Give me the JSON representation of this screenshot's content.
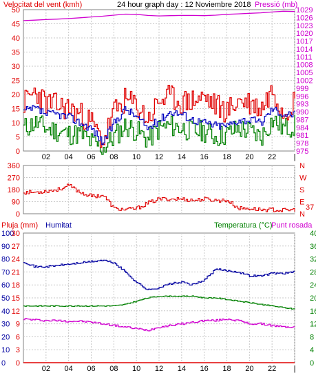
{
  "colors": {
    "wind": "#e00000",
    "gust_avg": "#0000c0",
    "wind_low": "#008000",
    "pressure": "#d000d0",
    "direction": "#e00000",
    "humidity": "#0000a0",
    "temperature": "#008000",
    "dewpoint": "#d000d0",
    "rain": "#e00000"
  },
  "chart_data": [
    {
      "type": "line",
      "title": "24 hour graph day : 12 Noviembre 2018",
      "left_axis_label": "Velocitat del vent (kmh)",
      "right_axis_label": "Pressió (mb)",
      "x_ticks": [
        "02",
        "04",
        "06",
        "08",
        "10",
        "12",
        "14",
        "16",
        "18",
        "20",
        "22",
        "|"
      ],
      "left_ticks": [
        0,
        5,
        10,
        15,
        20,
        25,
        30,
        35,
        40,
        45,
        50
      ],
      "right_ticks": [
        975,
        978,
        981,
        984,
        987,
        990,
        993,
        996,
        999,
        1002,
        1005,
        1008,
        1011,
        1014,
        1017,
        1020,
        1023,
        1026,
        1029
      ],
      "ylim_left": [
        0,
        50
      ],
      "ylim_right": [
        975,
        1029
      ],
      "x_hours": [
        0,
        1,
        2,
        3,
        4,
        5,
        6,
        7,
        8,
        9,
        10,
        11,
        12,
        13,
        14,
        15,
        16,
        17,
        18,
        19,
        20,
        21,
        22,
        23,
        24
      ],
      "series": [
        {
          "role": "wind_gust",
          "values": [
            17,
            21,
            17,
            16,
            15,
            13,
            10,
            3,
            14,
            18,
            16,
            11,
            18,
            19,
            17,
            18,
            19,
            16,
            14,
            18,
            17,
            15,
            22,
            14,
            18
          ]
        },
        {
          "role": "wind_avg",
          "values": [
            14,
            15,
            13,
            13,
            12,
            10,
            8,
            3,
            10,
            15,
            12,
            8,
            11,
            14,
            13,
            11,
            10,
            9,
            9,
            11,
            11,
            10,
            15,
            13,
            13
          ]
        },
        {
          "role": "wind_low",
          "values": [
            8,
            10,
            8,
            7,
            6,
            6,
            3,
            1,
            5,
            9,
            7,
            4,
            8,
            9,
            8,
            7,
            7,
            5,
            6,
            8,
            7,
            5,
            11,
            8,
            9
          ]
        },
        {
          "role": "pressure",
          "values": [
            1024.8,
            1025,
            1025.2,
            1025.4,
            1025.6,
            1025.9,
            1026.2,
            1026.5,
            1026.9,
            1027.3,
            1027.2,
            1026.8,
            1026.6,
            1026.7,
            1026.8,
            1026.8,
            1026.7,
            1026.9,
            1027.2,
            1027.4,
            1027.6,
            1027.8,
            1028.1,
            1028.4,
            1028.3
          ]
        }
      ]
    },
    {
      "type": "line",
      "left_ticks": [
        0,
        90,
        180,
        270,
        360
      ],
      "right_letters": [
        "N",
        "W",
        "S",
        "E",
        "N"
      ],
      "current_value": "37",
      "ylim": [
        0,
        360
      ],
      "x_hours": [
        0,
        1,
        2,
        3,
        4,
        5,
        6,
        7,
        8,
        9,
        10,
        11,
        12,
        13,
        14,
        15,
        16,
        17,
        18,
        19,
        20,
        21,
        22,
        23,
        24
      ],
      "series": [
        {
          "role": "direction",
          "values": [
            160,
            160,
            170,
            180,
            210,
            160,
            130,
            140,
            40,
            30,
            40,
            80,
            110,
            110,
            110,
            100,
            110,
            100,
            100,
            40,
            40,
            30,
            30,
            25,
            30
          ]
        }
      ]
    },
    {
      "type": "line",
      "left_label_rain": "Pluja (mm)",
      "left_label_humidity": "Humitat",
      "right_label_temp": "Temperatura (°C)",
      "right_label_dew": "Punt rosada",
      "rain_ticks": [
        0,
        3,
        6,
        9,
        12,
        15,
        18,
        21,
        24,
        27,
        30
      ],
      "humidity_ticks": [
        0,
        10,
        20,
        30,
        40,
        50,
        60,
        70,
        80,
        90,
        100
      ],
      "temp_ticks": [
        0,
        4,
        8,
        12,
        16,
        20,
        24,
        28,
        32,
        36,
        40
      ],
      "x_ticks": [
        "02",
        "04",
        "06",
        "08",
        "10",
        "12",
        "14",
        "16",
        "18",
        "20",
        "22",
        "|"
      ],
      "ylim_rain": [
        0,
        30
      ],
      "ylim_humidity": [
        0,
        100
      ],
      "ylim_temp": [
        0,
        40
      ],
      "x_hours": [
        0,
        1,
        2,
        3,
        4,
        5,
        6,
        7,
        8,
        9,
        10,
        11,
        12,
        13,
        14,
        15,
        16,
        17,
        18,
        19,
        20,
        21,
        22,
        23,
        24
      ],
      "series": [
        {
          "role": "humidity",
          "values": [
            78,
            74,
            74,
            75,
            76,
            77,
            78,
            79,
            77,
            70,
            62,
            56,
            58,
            61,
            62,
            60,
            64,
            72,
            71,
            70,
            67,
            67,
            69,
            69,
            70
          ]
        },
        {
          "role": "temperature",
          "values": [
            17.5,
            17.5,
            17.5,
            17.5,
            17.5,
            17.5,
            17.5,
            17.5,
            17.5,
            18,
            19,
            20,
            20.5,
            20.5,
            20.5,
            20.5,
            20,
            20,
            19.5,
            19,
            18.5,
            18,
            17.5,
            17,
            16.5
          ]
        },
        {
          "role": "dewpoint",
          "values": [
            13.5,
            13.2,
            13,
            13,
            12.8,
            12.8,
            12.5,
            12,
            11.5,
            11,
            10.5,
            10,
            11,
            11.5,
            12,
            12.5,
            13,
            13,
            13.5,
            13,
            12,
            12,
            11.5,
            11,
            11
          ]
        },
        {
          "role": "rain",
          "values": [
            0,
            0,
            0,
            0,
            0,
            0,
            0,
            0,
            0,
            0,
            0,
            0,
            0,
            0,
            0,
            0,
            0,
            0,
            0,
            0,
            0,
            0,
            0,
            0,
            0
          ]
        }
      ]
    }
  ]
}
